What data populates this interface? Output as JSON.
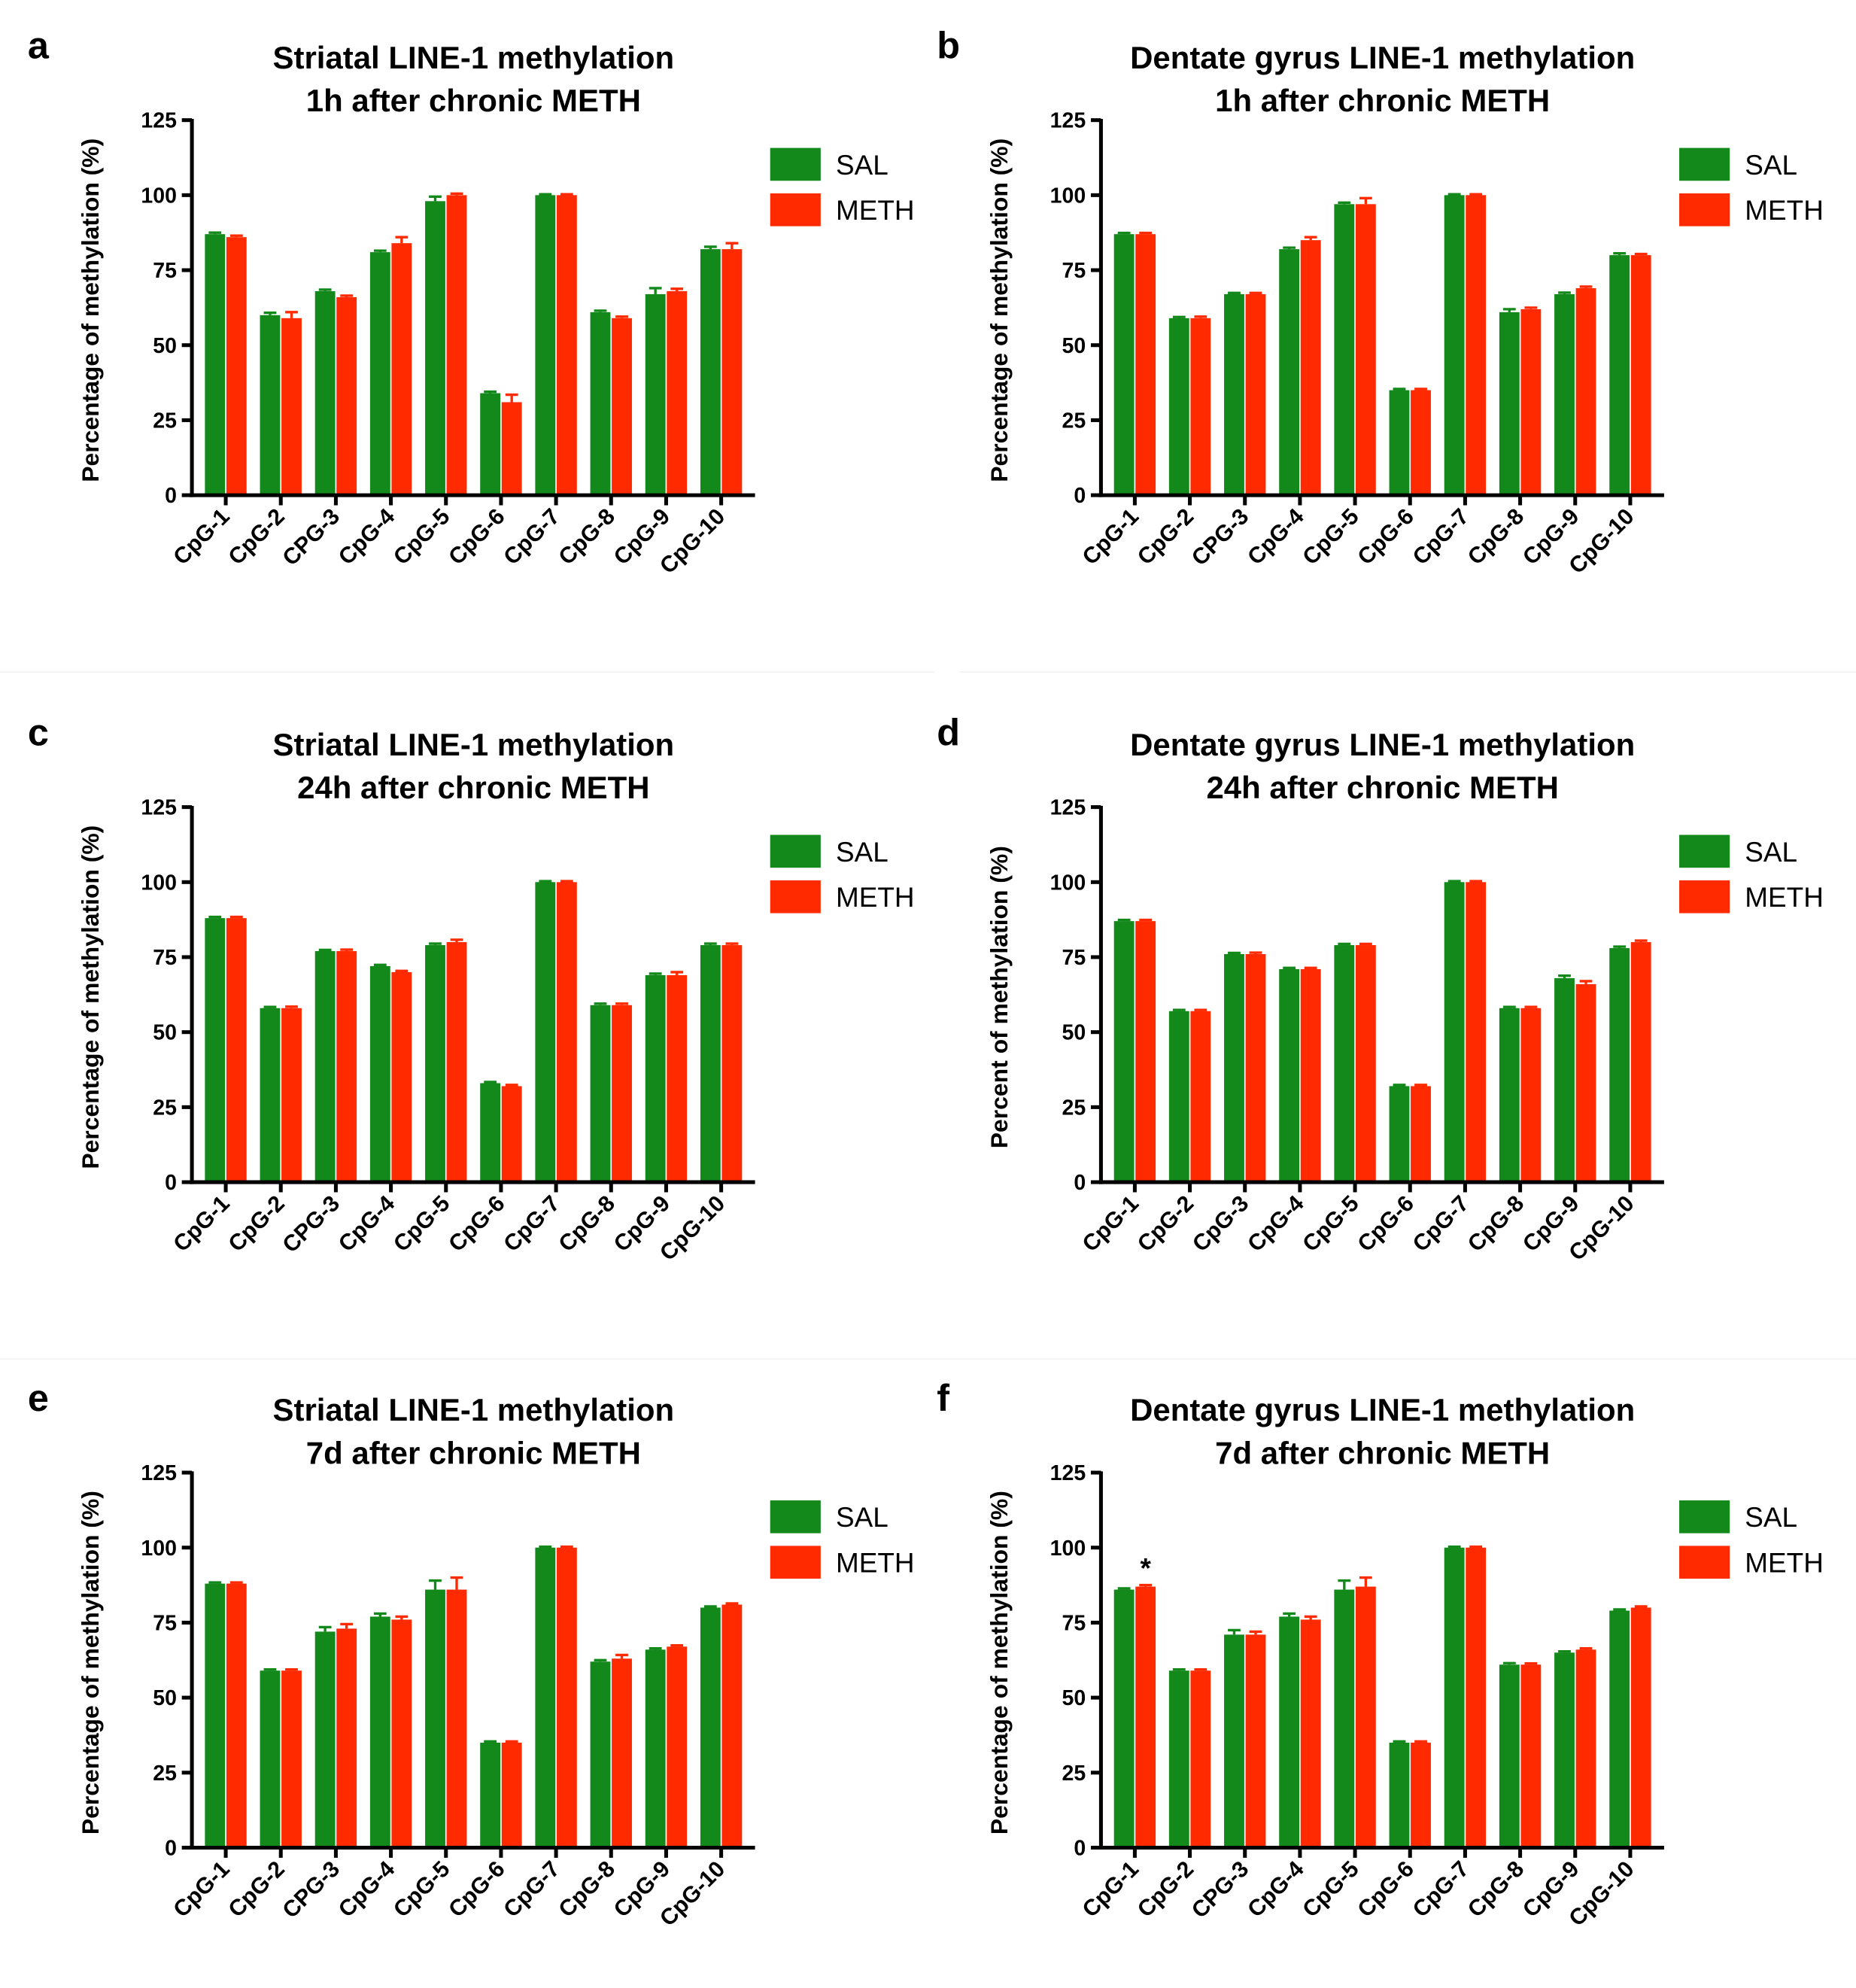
{
  "chart_data": [
    {
      "type": "bar",
      "panel": "a",
      "title": "Striatal LINE-1 methylation",
      "subtitle": "1h after chronic METH",
      "ylabel": "Percentage of methylation (%)",
      "categories": [
        "CpG-1",
        "CpG-2",
        "CPG-3",
        "CpG-4",
        "CpG-5",
        "CpG-6",
        "CpG-7",
        "CpG-8",
        "CpG-9",
        "CpG-10"
      ],
      "series": [
        {
          "name": "SAL",
          "color": "#12891a",
          "values": [
            87,
            60,
            68,
            81,
            98,
            34,
            100,
            61,
            67,
            82
          ],
          "errors": [
            0.5,
            0.8,
            0.5,
            0.5,
            1.5,
            0.5,
            0.3,
            0.5,
            2,
            0.8
          ]
        },
        {
          "name": "METH",
          "color": "#ff2a00",
          "values": [
            86,
            59,
            66,
            84,
            100,
            31,
            100,
            59,
            68,
            82
          ],
          "errors": [
            0.5,
            2,
            0.5,
            2,
            0.5,
            2.5,
            0.3,
            0.5,
            0.8,
            2
          ]
        }
      ],
      "ylim": [
        0,
        125
      ],
      "yticks": [
        0,
        25,
        50,
        75,
        100,
        125
      ],
      "legend": "right"
    },
    {
      "type": "bar",
      "panel": "b",
      "title": "Dentate gyrus LINE-1 methylation",
      "subtitle": "1h after chronic METH",
      "ylabel": "Percentage of methylation (%)",
      "categories": [
        "CpG-1",
        "CpG-2",
        "CPG-3",
        "CpG-4",
        "CpG-5",
        "CpG-6",
        "CpG-7",
        "CpG-8",
        "CpG-9",
        "CpG-10"
      ],
      "series": [
        {
          "name": "SAL",
          "color": "#12891a",
          "values": [
            87,
            59,
            67,
            82,
            97,
            35,
            100,
            61,
            67,
            80
          ],
          "errors": [
            0.4,
            0.4,
            0.4,
            0.5,
            0.5,
            0.4,
            0.3,
            1,
            0.5,
            0.6
          ]
        },
        {
          "name": "METH",
          "color": "#ff2a00",
          "values": [
            87,
            59,
            67,
            85,
            97,
            35,
            100,
            62,
            69,
            80
          ],
          "errors": [
            0.4,
            0.5,
            0.4,
            1,
            2,
            0.4,
            0.3,
            0.5,
            0.5,
            0.4
          ]
        }
      ],
      "ylim": [
        0,
        125
      ],
      "yticks": [
        0,
        25,
        50,
        75,
        100,
        125
      ],
      "legend": "right"
    },
    {
      "type": "bar",
      "panel": "c",
      "title": "Striatal LINE-1 methylation",
      "subtitle": "24h after chronic METH",
      "ylabel": "Percentage of methylation (%)",
      "categories": [
        "CpG-1",
        "CpG-2",
        "CPG-3",
        "CpG-4",
        "CpG-5",
        "CpG-6",
        "CpG-7",
        "CpG-8",
        "CpG-9",
        "CpG-10"
      ],
      "series": [
        {
          "name": "SAL",
          "color": "#12891a",
          "values": [
            88,
            58,
            77,
            72,
            79,
            33,
            100,
            59,
            69,
            79
          ],
          "errors": [
            0.4,
            0.4,
            0.4,
            0.4,
            0.5,
            0.4,
            0.3,
            0.5,
            0.5,
            0.5
          ]
        },
        {
          "name": "METH",
          "color": "#ff2a00",
          "values": [
            88,
            58,
            77,
            70,
            80,
            32,
            100,
            59,
            69,
            79
          ],
          "errors": [
            0.4,
            0.5,
            0.5,
            0.4,
            0.8,
            0.4,
            0.3,
            0.5,
            1,
            0.5
          ]
        }
      ],
      "ylim": [
        0,
        125
      ],
      "yticks": [
        0,
        25,
        50,
        75,
        100,
        125
      ],
      "legend": "right"
    },
    {
      "type": "bar",
      "panel": "d",
      "title": "Dentate gyrus LINE-1 methylation",
      "subtitle": "24h after chronic METH",
      "ylabel": "Percent of methylation  (%)",
      "categories": [
        "CpG-1",
        "CpG-2",
        "CpG-3",
        "CpG-4",
        "CpG-5",
        "CpG-6",
        "CpG-7",
        "CpG-8",
        "CpG-9",
        "CpG-10"
      ],
      "series": [
        {
          "name": "SAL",
          "color": "#12891a",
          "values": [
            87,
            57,
            76,
            71,
            79,
            32,
            100,
            58,
            68,
            78
          ],
          "errors": [
            0.4,
            0.4,
            0.4,
            0.4,
            0.4,
            0.4,
            0.3,
            0.4,
            0.8,
            0.5
          ]
        },
        {
          "name": "METH",
          "color": "#ff2a00",
          "values": [
            87,
            57,
            76,
            71,
            79,
            32,
            100,
            58,
            66,
            80
          ],
          "errors": [
            0.4,
            0.4,
            0.5,
            0.4,
            0.4,
            0.4,
            0.3,
            0.4,
            1,
            0.5
          ]
        }
      ],
      "ylim": [
        0,
        125
      ],
      "yticks": [
        0,
        25,
        50,
        75,
        100,
        125
      ],
      "legend": "right"
    },
    {
      "type": "bar",
      "panel": "e",
      "title": "Striatal LINE-1 methylation",
      "subtitle": "7d after chronic METH",
      "ylabel": "Percentage of methylation (%)",
      "categories": [
        "CpG-1",
        "CpG-2",
        "CPG-3",
        "CpG-4",
        "CpG-5",
        "CpG-6",
        "CpG-7",
        "CpG-8",
        "CpG-9",
        "CpG-10"
      ],
      "series": [
        {
          "name": "SAL",
          "color": "#12891a",
          "values": [
            88,
            59,
            72,
            77,
            86,
            35,
            100,
            62,
            66,
            80
          ],
          "errors": [
            0.4,
            0.4,
            1.5,
            1,
            3,
            0.4,
            0.3,
            0.5,
            0.4,
            0.4
          ]
        },
        {
          "name": "METH",
          "color": "#ff2a00",
          "values": [
            88,
            59,
            73,
            76,
            86,
            35,
            100,
            63,
            67,
            81
          ],
          "errors": [
            0.4,
            0.4,
            1.5,
            1,
            4,
            0.4,
            0.3,
            1.2,
            0.4,
            0.4
          ]
        }
      ],
      "ylim": [
        0,
        125
      ],
      "yticks": [
        0,
        25,
        50,
        75,
        100,
        125
      ],
      "legend": "right"
    },
    {
      "type": "bar",
      "panel": "f",
      "title": "Dentate gyrus LINE-1 methylation",
      "subtitle": "7d after chronic METH",
      "ylabel": "Percentage of methylation (%)",
      "categories": [
        "CpG-1",
        "CpG-2",
        "CPG-3",
        "CpG-4",
        "CpG-5",
        "CpG-6",
        "CpG-7",
        "CpG-8",
        "CpG-9",
        "CpG-10"
      ],
      "series": [
        {
          "name": "SAL",
          "color": "#12891a",
          "values": [
            86,
            59,
            71,
            77,
            86,
            35,
            100,
            61,
            65,
            79
          ],
          "errors": [
            0.4,
            0.4,
            1.5,
            1,
            3,
            0.4,
            0.3,
            0.5,
            0.4,
            0.4
          ]
        },
        {
          "name": "METH",
          "color": "#ff2a00",
          "values": [
            87,
            59,
            71,
            76,
            87,
            35,
            100,
            61,
            66,
            80
          ],
          "errors": [
            0.5,
            0.4,
            1,
            1,
            3,
            0.4,
            0.3,
            0.4,
            0.4,
            0.4
          ]
        }
      ],
      "ylim": [
        0,
        125
      ],
      "yticks": [
        0,
        25,
        50,
        75,
        100,
        125
      ],
      "legend": "right",
      "annotations": [
        {
          "text": "*",
          "category": "CpG-1",
          "series": "METH"
        }
      ]
    }
  ]
}
